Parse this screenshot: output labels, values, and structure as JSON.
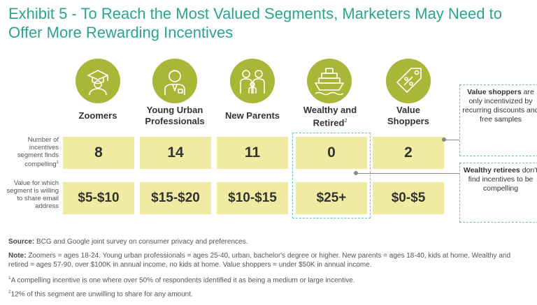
{
  "title": "Exhibit 5 - To Reach the Most Valued Segments, Marketers May Need to Offer More Rewarding Incentives",
  "colors": {
    "title": "#2ba58a",
    "icon_circle": "#a9b738",
    "cell_fill": "#f0eaa3",
    "dashed_border": "#6fc4ae"
  },
  "row_labels": {
    "count": "Number of incentives segment finds compelling",
    "count_sup": "1",
    "value": "Value for which segment is willing to share email address"
  },
  "chart_data": {
    "type": "table",
    "title": "Exhibit 5 - To Reach the Most Valued Segments, Marketers May Need to Offer More Rewarding Incentives",
    "categories": [
      "Zoomers",
      "Young Urban Professionals",
      "New Parents",
      "Wealthy and Retired",
      "Value Shoppers"
    ],
    "series": [
      {
        "name": "Number of incentives segment finds compelling",
        "values": [
          8,
          14,
          11,
          0,
          2
        ]
      },
      {
        "name": "Value for which segment is willing to share email address",
        "values": [
          "$5-$10",
          "$15-$20",
          "$10-$15",
          "$25+",
          "$0-$5"
        ]
      }
    ]
  },
  "segments": [
    {
      "line1": "Zoomers",
      "line2": "",
      "sup": "",
      "icon": "graduate-icon",
      "count": "8",
      "value": "$5-$10"
    },
    {
      "line1": "Young Urban",
      "line2": "Professionals",
      "sup": "",
      "icon": "professional-icon",
      "count": "14",
      "value": "$15-$20"
    },
    {
      "line1": "New Parents",
      "line2": "",
      "sup": "",
      "icon": "family-icon",
      "count": "11",
      "value": "$10-$15"
    },
    {
      "line1": "Wealthy and",
      "line2": "Retired",
      "sup": "2",
      "icon": "cruise-ship-icon",
      "count": "0",
      "value": "$25+"
    },
    {
      "line1": "Value",
      "line2": "Shoppers",
      "sup": "",
      "icon": "price-tag-icon",
      "count": "2",
      "value": "$0-$5"
    }
  ],
  "callouts": {
    "value_shoppers": {
      "bold": "Value shoppers",
      "text": "are only incentivized by recurring discounts and free samples"
    },
    "wealthy_retirees": {
      "bold": "Wealthy retirees",
      "text": "don't find incentives to be compelling"
    }
  },
  "notes": {
    "source_label": "Source:",
    "source_text": "BCG and Google joint survey on consumer privacy and preferences.",
    "note_label": "Note:",
    "note_text": "Zoomers = ages 18-24. Young urban professionals = ages 25-40, urban, bachelor's degree or higher. New parents = ages 18-40, kids at home. Wealthy and retired = ages 57-90, over $100K in annual income, no kids at home. Value shoppers = under $50K in annual income.",
    "footnote1_mark": "1",
    "footnote1": "A compelling incentive is one where over 50% of respondents identified it as being a medium or large incentive.",
    "footnote2_mark": "2",
    "footnote2": "12% of this segment are unwilling to share for any amount."
  }
}
